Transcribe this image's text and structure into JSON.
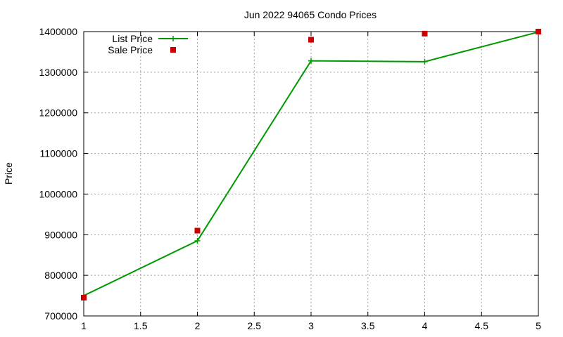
{
  "chart_data": {
    "type": "line",
    "title": "Jun 2022 94065 Condo Prices",
    "xlabel": "",
    "ylabel": "Price",
    "xlim": [
      1,
      5
    ],
    "ylim": [
      700000,
      1400000
    ],
    "xticks": [
      1,
      1.5,
      2,
      2.5,
      3,
      3.5,
      4,
      4.5,
      5
    ],
    "xtick_labels": [
      "1",
      "1.5",
      "2",
      "2.5",
      "3",
      "3.5",
      "4",
      "4.5",
      "5"
    ],
    "yticks": [
      700000,
      800000,
      900000,
      1000000,
      1100000,
      1200000,
      1300000,
      1400000
    ],
    "ytick_labels": [
      "700000",
      "800000",
      "900000",
      "1000000",
      "1100000",
      "1200000",
      "1300000",
      "1400000"
    ],
    "grid": true,
    "legend_position": "top-left",
    "series": [
      {
        "name": "List Price",
        "style": "line+cross",
        "color": "#009900",
        "x": [
          1,
          2,
          3,
          4,
          5
        ],
        "y": [
          750000,
          885000,
          1328000,
          1326000,
          1399000
        ]
      },
      {
        "name": "Sale Price",
        "style": "square",
        "color": "#cc0000",
        "x": [
          1,
          2,
          3,
          4,
          5
        ],
        "y": [
          745000,
          910000,
          1380000,
          1395000,
          1400000
        ]
      }
    ]
  }
}
